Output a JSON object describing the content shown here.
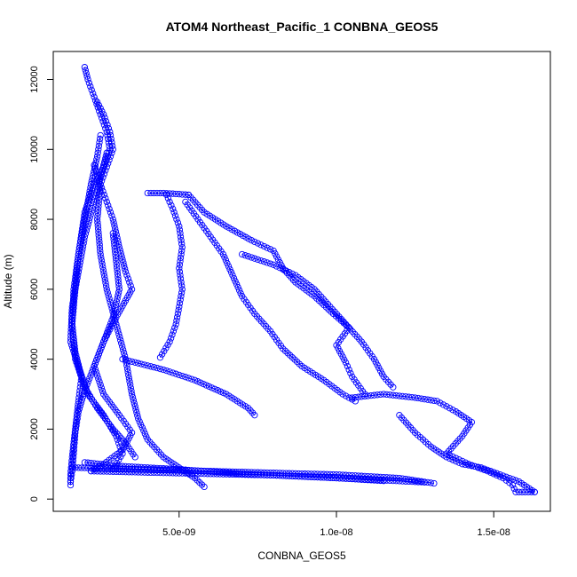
{
  "chart_data": {
    "type": "scatter",
    "title": "ATOM4 Northeast_Pacific_1 CONBNA_GEOS5",
    "xlabel": "CONBNA_GEOS5",
    "ylabel": "Altitude (m)",
    "xlim": [
      1e-09,
      1.68e-08
    ],
    "ylim": [
      -350,
      12800
    ],
    "xticks": [
      5e-09,
      1e-08,
      1.5e-08
    ],
    "xtick_labels": [
      "5.0e-09",
      "1.0e-08",
      "1.5e-08"
    ],
    "yticks": [
      0,
      2000,
      4000,
      6000,
      8000,
      10000,
      12000
    ],
    "ytick_labels": [
      "0",
      "2000",
      "4000",
      "6000",
      "8000",
      "10000",
      "12000"
    ],
    "marker_color": "#0000ff",
    "marker": "open-circle",
    "grid": false,
    "legend": "none",
    "series": [
      {
        "points": [
          [
            2e-09,
            12350
          ],
          [
            2.1e-09,
            12000
          ],
          [
            2.3e-09,
            11500
          ],
          [
            2.5e-09,
            11000
          ],
          [
            2.7e-09,
            10500
          ],
          [
            2.8e-09,
            10000
          ],
          [
            2.6e-09,
            9500
          ],
          [
            2.3e-09,
            9000
          ],
          [
            2e-09,
            8200
          ],
          [
            1.8e-09,
            7000
          ],
          [
            1.7e-09,
            6000
          ],
          [
            1.6e-09,
            5000
          ],
          [
            1.7e-09,
            4200
          ],
          [
            1.9e-09,
            3500
          ],
          [
            1.8e-09,
            2800
          ],
          [
            1.7e-09,
            2000
          ],
          [
            1.6e-09,
            1200
          ],
          [
            1.55e-09,
            700
          ],
          [
            1.55e-09,
            400
          ]
        ]
      },
      {
        "points": [
          [
            2.4e-09,
            11350
          ],
          [
            2.6e-09,
            11000
          ],
          [
            2.8e-09,
            10500
          ],
          [
            2.9e-09,
            10000
          ],
          [
            2.7e-09,
            9500
          ],
          [
            2.5e-09,
            9000
          ],
          [
            2.4e-09,
            8000
          ],
          [
            2.5e-09,
            7000
          ],
          [
            2.7e-09,
            6000
          ],
          [
            3e-09,
            5000
          ],
          [
            3.3e-09,
            4000
          ],
          [
            3.5e-09,
            3000
          ],
          [
            3.7e-09,
            2300
          ],
          [
            4e-09,
            1700
          ],
          [
            4.5e-09,
            1200
          ],
          [
            5e-09,
            900
          ],
          [
            5.5e-09,
            600
          ],
          [
            5.8e-09,
            350
          ]
        ]
      },
      {
        "points": [
          [
            2.3e-09,
            9550
          ],
          [
            2.5e-09,
            9000
          ],
          [
            2.7e-09,
            8500
          ],
          [
            2.9e-09,
            8000
          ],
          [
            3.1e-09,
            7200
          ],
          [
            3.3e-09,
            6500
          ],
          [
            3.5e-09,
            6000
          ],
          [
            3e-09,
            5200
          ],
          [
            2.6e-09,
            4500
          ],
          [
            2.3e-09,
            3800
          ],
          [
            2.6e-09,
            3000
          ],
          [
            3.1e-09,
            2400
          ],
          [
            3.5e-09,
            1900
          ],
          [
            3.2e-09,
            1400
          ],
          [
            2.6e-09,
            1000
          ],
          [
            2.2e-09,
            800
          ]
        ]
      },
      {
        "points": [
          [
            2.5e-09,
            10400
          ],
          [
            2.4e-09,
            9800
          ],
          [
            2.2e-09,
            9000
          ],
          [
            2e-09,
            8000
          ],
          [
            1.8e-09,
            7000
          ],
          [
            1.65e-09,
            6000
          ],
          [
            1.6e-09,
            5000
          ],
          [
            1.7e-09,
            4000
          ],
          [
            2e-09,
            3200
          ],
          [
            2.4e-09,
            2600
          ],
          [
            2.9e-09,
            2000
          ],
          [
            3.3e-09,
            1600
          ],
          [
            3.6e-09,
            1200
          ]
        ]
      },
      {
        "points": [
          [
            2.7e-09,
            9900
          ],
          [
            2.5e-09,
            9200
          ],
          [
            2.3e-09,
            8500
          ],
          [
            2e-09,
            7500
          ],
          [
            1.8e-09,
            6500
          ],
          [
            1.6e-09,
            5500
          ],
          [
            1.55e-09,
            4500
          ],
          [
            1.8e-09,
            3800
          ],
          [
            2.1e-09,
            3000
          ],
          [
            2.6e-09,
            2400
          ],
          [
            3e-09,
            1800
          ],
          [
            3.2e-09,
            1300
          ],
          [
            2.9e-09,
            850
          ]
        ]
      },
      {
        "points": [
          [
            2.9e-09,
            7600
          ],
          [
            3e-09,
            6800
          ],
          [
            3.1e-09,
            6000
          ],
          [
            2.9e-09,
            5200
          ],
          [
            2.6e-09,
            4500
          ],
          [
            2.3e-09,
            3800
          ],
          [
            2e-09,
            3100
          ],
          [
            1.8e-09,
            2500
          ],
          [
            1.7e-09,
            1900
          ],
          [
            1.65e-09,
            1300
          ],
          [
            1.6e-09,
            800
          ],
          [
            1.55e-09,
            500
          ]
        ]
      },
      {
        "points": [
          [
            4e-09,
            8750
          ],
          [
            4.5e-09,
            8750
          ],
          [
            5e-09,
            8720
          ],
          [
            5.3e-09,
            8700
          ]
        ]
      },
      {
        "points": [
          [
            4.6e-09,
            8700
          ],
          [
            4.8e-09,
            8300
          ],
          [
            5e-09,
            7800
          ],
          [
            5.1e-09,
            7200
          ],
          [
            5e-09,
            6600
          ],
          [
            5.1e-09,
            6000
          ],
          [
            5e-09,
            5500
          ],
          [
            4.9e-09,
            5000
          ],
          [
            4.7e-09,
            4500
          ],
          [
            4.4e-09,
            4050
          ]
        ]
      },
      {
        "points": [
          [
            5.2e-09,
            8500
          ],
          [
            5.6e-09,
            8000
          ],
          [
            6e-09,
            7500
          ],
          [
            6.4e-09,
            7000
          ],
          [
            6.7e-09,
            6400
          ],
          [
            7e-09,
            5800
          ],
          [
            7.4e-09,
            5300
          ],
          [
            7.9e-09,
            4800
          ],
          [
            8.3e-09,
            4300
          ],
          [
            8.9e-09,
            3800
          ],
          [
            9.6e-09,
            3400
          ],
          [
            1.02e-08,
            3000
          ],
          [
            1.06e-08,
            2800
          ]
        ]
      },
      {
        "points": [
          [
            5.3e-09,
            8700
          ],
          [
            5.8e-09,
            8200
          ],
          [
            6.5e-09,
            7800
          ],
          [
            7.3e-09,
            7400
          ],
          [
            8e-09,
            7100
          ],
          [
            8.3e-09,
            6600
          ],
          [
            8.7e-09,
            6200
          ],
          [
            9.3e-09,
            5800
          ],
          [
            9.9e-09,
            5300
          ],
          [
            1.04e-08,
            4900
          ],
          [
            1e-08,
            4400
          ],
          [
            1.03e-08,
            3900
          ],
          [
            1.05e-08,
            3500
          ],
          [
            1.09e-08,
            3000
          ]
        ]
      },
      {
        "points": [
          [
            7e-09,
            7000
          ],
          [
            8e-09,
            6700
          ],
          [
            8.7e-09,
            6400
          ],
          [
            9.3e-09,
            6000
          ],
          [
            9.8e-09,
            5500
          ],
          [
            1.03e-08,
            5000
          ],
          [
            1.08e-08,
            4500
          ],
          [
            1.12e-08,
            4000
          ],
          [
            1.15e-08,
            3500
          ],
          [
            1.18e-08,
            3200
          ]
        ]
      },
      {
        "points": [
          [
            3.2e-09,
            4000
          ],
          [
            4.5e-09,
            3700
          ],
          [
            5.5e-09,
            3400
          ],
          [
            6.5e-09,
            3000
          ],
          [
            7.2e-09,
            2600
          ],
          [
            7.4e-09,
            2400
          ]
        ]
      },
      {
        "points": [
          [
            1.05e-08,
            2900
          ],
          [
            1.15e-08,
            3000
          ],
          [
            1.25e-08,
            2900
          ],
          [
            1.32e-08,
            2800
          ],
          [
            1.38e-08,
            2500
          ],
          [
            1.43e-08,
            2200
          ],
          [
            1.4e-08,
            1800
          ],
          [
            1.35e-08,
            1300
          ],
          [
            1.42e-08,
            1000
          ],
          [
            1.48e-08,
            800
          ],
          [
            1.53e-08,
            600
          ],
          [
            1.56e-08,
            400
          ],
          [
            1.57e-08,
            200
          ],
          [
            1.6e-08,
            200
          ],
          [
            1.63e-08,
            200
          ]
        ]
      },
      {
        "points": [
          [
            1.2e-08,
            2400
          ],
          [
            1.25e-08,
            1900
          ],
          [
            1.3e-08,
            1500
          ],
          [
            1.35e-08,
            1200
          ],
          [
            1.4e-08,
            1000
          ],
          [
            1.46e-08,
            900
          ],
          [
            1.52e-08,
            700
          ],
          [
            1.58e-08,
            500
          ],
          [
            1.63e-08,
            200
          ]
        ]
      },
      {
        "points": [
          [
            1.6e-09,
            900
          ],
          [
            2.5e-09,
            880
          ],
          [
            4e-09,
            850
          ],
          [
            6e-09,
            800
          ],
          [
            8e-09,
            750
          ],
          [
            1e-08,
            700
          ],
          [
            1.2e-08,
            600
          ],
          [
            1.31e-08,
            450
          ]
        ]
      },
      {
        "points": [
          [
            2e-09,
            1050
          ],
          [
            3e-09,
            950
          ],
          [
            5e-09,
            850
          ],
          [
            7e-09,
            720
          ],
          [
            9e-09,
            640
          ],
          [
            1.1e-08,
            560
          ],
          [
            1.28e-08,
            480
          ]
        ]
      },
      {
        "points": [
          [
            2.2e-09,
            800
          ],
          [
            4e-09,
            760
          ],
          [
            6e-09,
            720
          ],
          [
            8e-09,
            680
          ],
          [
            1e-08,
            600
          ],
          [
            1.15e-08,
            520
          ]
        ]
      }
    ]
  }
}
